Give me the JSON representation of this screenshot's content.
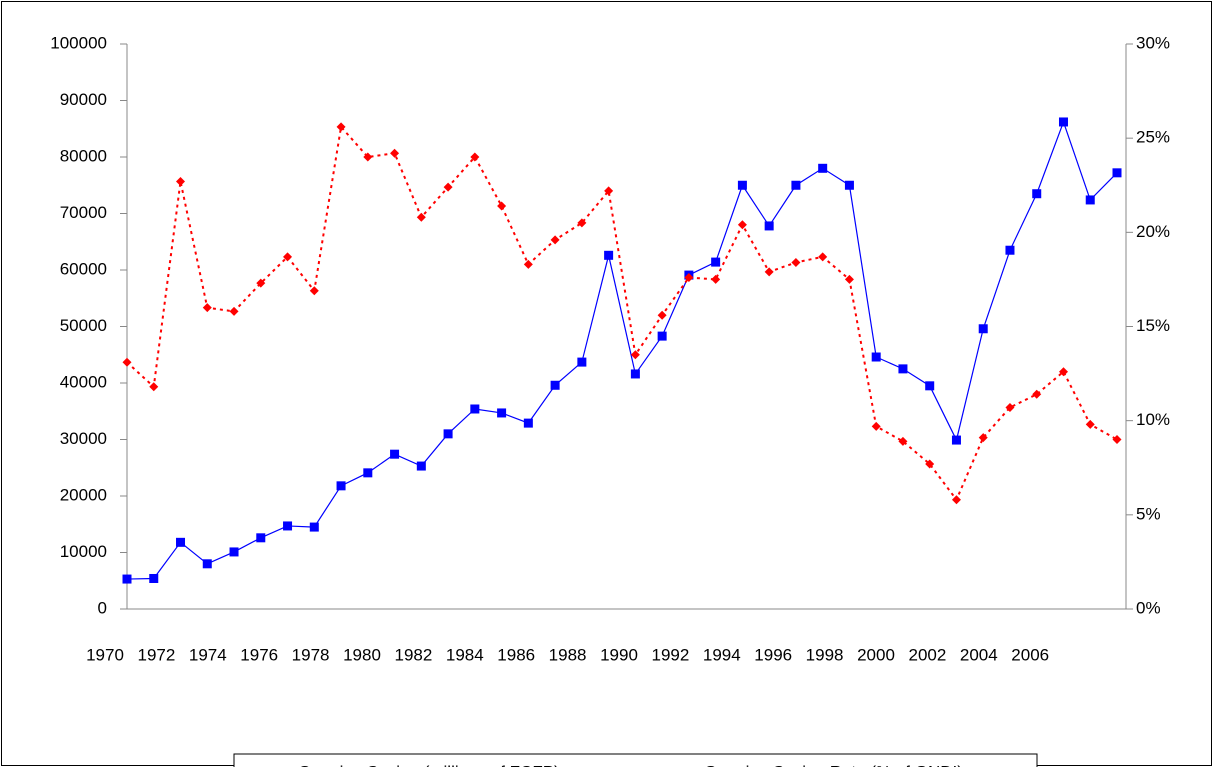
{
  "chart_data": {
    "type": "line",
    "categories": [
      "1970",
      null,
      "1972",
      null,
      "1974",
      null,
      "1976",
      null,
      "1978",
      null,
      "1980",
      null,
      "1982",
      null,
      "1984",
      null,
      "1986",
      null,
      "1988",
      null,
      "1990",
      null,
      "1992",
      null,
      "1994",
      null,
      "1996",
      null,
      "1998",
      null,
      "2000",
      null,
      "2002",
      null,
      "2004",
      null,
      "2006",
      null
    ],
    "series": [
      {
        "name": "Genuine Saving (millions of FCFP)",
        "color": "#0000ff",
        "marker": "square",
        "dash": false,
        "values": [
          5300,
          5400,
          11800,
          8000,
          10100,
          12600,
          14700,
          14500,
          21800,
          24100,
          27400,
          25300,
          31000,
          35400,
          34700,
          32900,
          39600,
          43700,
          62600,
          41600,
          48300,
          59100,
          61400,
          75000,
          67800,
          75000,
          78000,
          75000,
          44600,
          42500,
          39500,
          29900,
          49600,
          63500,
          73500,
          86200,
          72400,
          77200
        ]
      },
      {
        "name": "Genuine Saving Rate (% of GNDI)",
        "color": "#ff0000",
        "marker": "diamond",
        "dash": true,
        "axis": "y2",
        "values": [
          13.1,
          11.8,
          22.7,
          16.0,
          15.8,
          17.3,
          18.7,
          16.9,
          25.6,
          24.0,
          24.2,
          20.8,
          22.4,
          24.0,
          21.4,
          18.3,
          19.6,
          20.5,
          22.2,
          13.5,
          15.6,
          17.6,
          17.5,
          20.4,
          17.9,
          18.4,
          18.7,
          17.5,
          9.7,
          8.9,
          7.7,
          5.8,
          9.1,
          10.7,
          11.4,
          12.6,
          9.8,
          9.0
        ]
      }
    ],
    "ylim": [
      0,
      100000
    ],
    "yticks": [
      0,
      10000,
      20000,
      30000,
      40000,
      50000,
      60000,
      70000,
      80000,
      90000,
      100000
    ],
    "y2lim": [
      0,
      30
    ],
    "y2ticks": [
      {
        "value": 0,
        "label": "0%"
      },
      {
        "value": 5,
        "label": "5%"
      },
      {
        "value": 10,
        "label": "10%"
      },
      {
        "value": 15,
        "label": "15%"
      },
      {
        "value": 20,
        "label": "20%"
      },
      {
        "value": 25,
        "label": "25%"
      },
      {
        "value": 30,
        "label": "30%"
      }
    ],
    "grid": false,
    "legend": "bottom"
  }
}
